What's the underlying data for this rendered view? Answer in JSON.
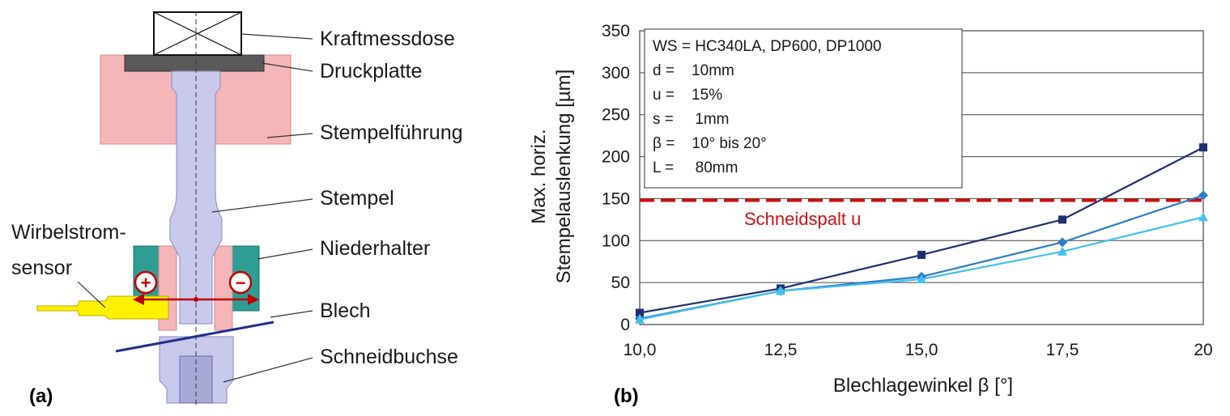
{
  "figure": {
    "panel_a_tag": "(a)",
    "panel_b_tag": "(b)",
    "colors": {
      "pink": "#f4b6b8",
      "lavender": "#c9c9ec",
      "teal": "#2e9e95",
      "yellow": "#fff200",
      "red": "#c00000",
      "blue_line": "#1f2f8a"
    }
  },
  "diagram": {
    "labels": {
      "kraftmessdose": "Kraftmessdose",
      "druckplatte": "Druckplatte",
      "stempelfuehrung": "Stempelführung",
      "stempel": "Stempel",
      "wirbelstrom_line1": "Wirbelstrom-",
      "wirbelstrom_line2": "sensor",
      "niederhalter": "Niederhalter",
      "blech": "Blech",
      "schneidbuchse": "Schneidbuchse",
      "plus": "+",
      "minus": "−"
    }
  },
  "chart_data": {
    "type": "line",
    "title": "",
    "xlabel": "Blechlagewinkel β [°]",
    "ylabel_line1": "Max. horiz.",
    "ylabel_line2": "Stempelauslenkung [µm]",
    "categories": [
      "10,0",
      "12,5",
      "15,0",
      "17,5",
      "20"
    ],
    "x": [
      10,
      12.5,
      15,
      17.5,
      20
    ],
    "xlim": [
      10,
      20
    ],
    "ylim": [
      0,
      350
    ],
    "yticks": [
      "0",
      "50",
      "100",
      "150",
      "200",
      "250",
      "300",
      "350"
    ],
    "ytick_values": [
      0,
      50,
      100,
      150,
      200,
      250,
      300,
      350
    ],
    "grid": true,
    "series": [
      {
        "color": "#1f2f6e",
        "marker": "square",
        "values": [
          14,
          43,
          83,
          125,
          211
        ]
      },
      {
        "color": "#2b7cc4",
        "marker": "diamond",
        "values": [
          7,
          40,
          57,
          98,
          154
        ]
      },
      {
        "color": "#44c0ee",
        "marker": "triangle",
        "values": [
          6,
          40,
          54,
          87,
          128
        ]
      }
    ],
    "reference_line": {
      "label": "Schneidspalt u",
      "value": 148,
      "color": "#d01010"
    },
    "legend": {
      "position": "top-left",
      "lines": [
        "WS = HC340LA, DP600, DP1000",
        "d =    10mm",
        "u =    15%",
        "s =     1mm",
        "β =    10° bis 20°",
        "L =     80mm"
      ]
    }
  }
}
